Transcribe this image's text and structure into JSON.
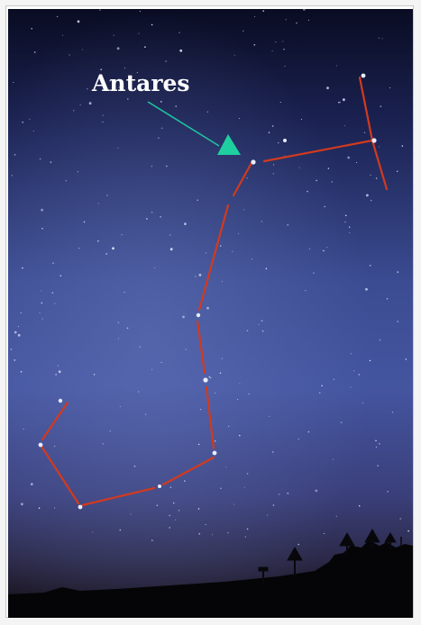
{
  "annotation": {
    "label": "Antares",
    "arrow_color": "#20c2a0",
    "marker_color": "#1ed0a0"
  },
  "colors": {
    "constellation_line": "#d23a1e",
    "sky_top": "#0a0c22",
    "sky_mid": "#3a4c92",
    "ground": "#050507"
  }
}
